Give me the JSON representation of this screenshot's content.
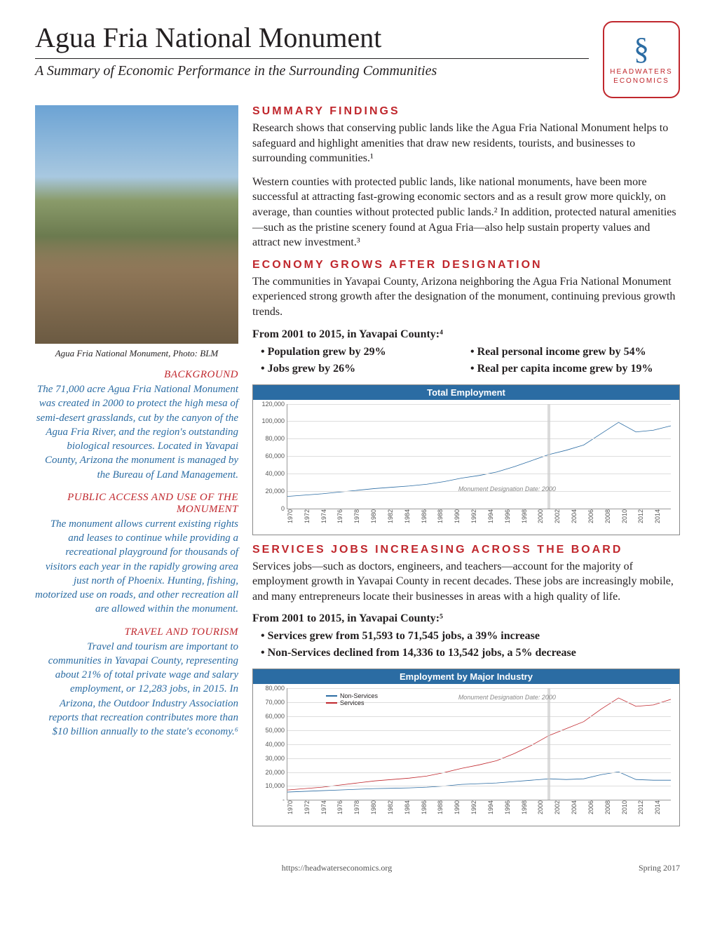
{
  "header": {
    "title": "Agua Fria National Monument",
    "subtitle": "A Summary of Economic Performance in the Surrounding Communities",
    "logo_line1": "HEADWATERS",
    "logo_line2": "ECONOMICS"
  },
  "sidebar": {
    "caption": "Agua Fria National Monument, Photo: BLM",
    "background_heading": "BACKGROUND",
    "background_body": "The 71,000 acre Agua Fria National Monument was created in 2000 to protect the high mesa of semi-desert grasslands, cut by the canyon of the Agua Fria River, and the region's outstanding biological resources. Located in Yavapai County, Arizona the monument is managed by the Bureau of Land Management.",
    "public_heading": "PUBLIC ACCESS AND USE OF THE MONUMENT",
    "public_body": "The monument allows current existing rights and leases to continue while providing a recreational playground for thousands of visitors each year in the rapidly growing area just north of Phoenix. Hunting, fishing, motorized use on roads, and other recreation all are allowed within the monument.",
    "travel_heading": "TRAVEL AND TOURISM",
    "travel_body": "Travel and tourism are important to communities in Yavapai County, representing about 21% of total private wage and salary employment, or 12,283 jobs, in 2015. In Arizona, the Outdoor Industry Association reports that recreation contributes more than $10 billion annually to the state's economy.⁶"
  },
  "main": {
    "summary_heading": "SUMMARY FINDINGS",
    "summary_p1": "Research shows that conserving public lands like the Agua Fria National Monument helps to safeguard and highlight amenities that draw new residents, tourists, and businesses to surrounding communities.¹",
    "summary_p2": "Western counties with protected public lands, like national monuments, have been more successful at attracting fast-growing economic sectors and as a result grow more quickly, on average, than counties without protected public lands.² In addition, protected natural amenities—such as the pristine scenery found at Agua Fria—also help sustain property values and attract new investment.³",
    "economy_heading": "ECONOMY GROWS AFTER DESIGNATION",
    "economy_p1": "The communities in Yavapai County, Arizona neighboring the Agua Fria National Monument experienced strong growth after the designation of the monument, continuing previous growth trends.",
    "economy_bold": "From 2001 to 2015, in Yavapai County:⁴",
    "economy_b1": "• Population grew by 29%",
    "economy_b2": "• Real personal income grew by 54%",
    "economy_b3": "• Jobs grew by 26%",
    "economy_b4": "• Real per capita income grew by 19%",
    "services_heading": "SERVICES JOBS INCREASING ACROSS THE BOARD",
    "services_p1": "Services jobs—such as doctors, engineers, and teachers—account for the majority of employment growth in Yavapai County in recent decades. These jobs are increasingly mobile, and many entrepreneurs locate their businesses in areas with a high quality of life.",
    "services_bold": "From 2001 to 2015, in Yavapai County:⁵",
    "services_b1": "• Services grew from 51,593 to 71,545 jobs, a 39% increase",
    "services_b2": "• Non-Services declined from 14,336 to 13,542 jobs, a 5% decrease"
  },
  "chart1": {
    "title": "Total Employment",
    "type": "line",
    "ylim": [
      0,
      120000
    ],
    "ytick_step": 20000,
    "ylabels": [
      "0",
      "20,000",
      "40,000",
      "60,000",
      "80,000",
      "100,000",
      "120,000"
    ],
    "xlabels": [
      "1970",
      "1972",
      "1974",
      "1976",
      "1978",
      "1980",
      "1982",
      "1984",
      "1986",
      "1988",
      "1990",
      "1992",
      "1994",
      "1996",
      "1998",
      "2000",
      "2002",
      "2004",
      "2006",
      "2008",
      "2010",
      "2012",
      "2014"
    ],
    "series": [
      {
        "name": "Total",
        "color": "#2b6ca3",
        "values": [
          14000,
          15500,
          17000,
          19000,
          21000,
          23000,
          24500,
          26000,
          28000,
          31000,
          35000,
          38000,
          42000,
          48000,
          55000,
          62000,
          67000,
          73000,
          86000,
          99000,
          88000,
          90000,
          95000
        ]
      }
    ],
    "note": "Monument Designation Date: 2000",
    "marker_year": "2000",
    "grid_color": "#dddddd",
    "background_color": "#ffffff"
  },
  "chart2": {
    "title": "Employment by Major Industry",
    "type": "line",
    "ylim": [
      0,
      80000
    ],
    "ytick_step": 10000,
    "ylabels": [
      "-",
      "10,000",
      "20,000",
      "30,000",
      "40,000",
      "50,000",
      "60,000",
      "70,000",
      "80,000"
    ],
    "xlabels": [
      "1970",
      "1972",
      "1974",
      "1976",
      "1978",
      "1980",
      "1982",
      "1984",
      "1986",
      "1988",
      "1990",
      "1992",
      "1994",
      "1996",
      "1998",
      "2000",
      "2002",
      "2004",
      "2006",
      "2008",
      "2010",
      "2012",
      "2014"
    ],
    "series": [
      {
        "name": "Non-Services",
        "color": "#2b6ca3",
        "values": [
          5500,
          6000,
          6500,
          7000,
          7500,
          8000,
          8200,
          8500,
          9000,
          9800,
          11000,
          11500,
          12000,
          13000,
          14000,
          15000,
          14500,
          15000,
          18000,
          20000,
          14500,
          14000,
          14000
        ]
      },
      {
        "name": "Services",
        "color": "#c0272d",
        "values": [
          7000,
          8000,
          9000,
          10500,
          12000,
          13500,
          14500,
          15500,
          17000,
          19500,
          22500,
          25000,
          28000,
          33000,
          39000,
          46000,
          51000,
          56000,
          65000,
          73000,
          67000,
          68000,
          72000
        ]
      }
    ],
    "note": "Monument Designation Date: 2000",
    "marker_year": "2000",
    "legend": [
      "Non-Services",
      "Services"
    ],
    "legend_colors": [
      "#2b6ca3",
      "#c0272d"
    ],
    "grid_color": "#dddddd",
    "background_color": "#ffffff"
  },
  "footer": {
    "url": "https://headwaterseconomics.org",
    "date": "Spring 2017"
  }
}
